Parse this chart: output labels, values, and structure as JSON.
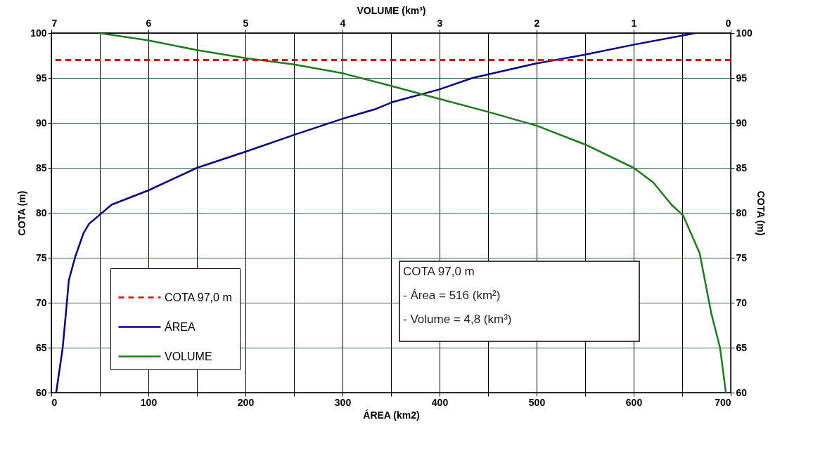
{
  "chart_data": {
    "type": "line",
    "xlabel": "ÁREA (km2)",
    "x2label": "VOLUME (km³)",
    "ylabel": "COTA (m)",
    "y2label": "COTA (m)",
    "xlim": [
      0,
      700
    ],
    "xticks": [
      0,
      {
        "value": 50,
        "label": null
      },
      100,
      {
        "value": 150,
        "label": null
      },
      200,
      {
        "value": 250,
        "label": null
      },
      300,
      {
        "value": 350,
        "label": null
      },
      400,
      {
        "value": 450,
        "label": null
      },
      500,
      {
        "value": 550,
        "label": null
      },
      600,
      {
        "value": 650,
        "label": null
      },
      700
    ],
    "x2lim": [
      7,
      0
    ],
    "x2ticks": [
      7,
      6,
      5,
      4,
      3,
      2,
      1,
      0
    ],
    "ylim": [
      60,
      100
    ],
    "yticks": [
      60,
      65,
      70,
      75,
      80,
      85,
      90,
      95,
      100
    ],
    "y2lim": [
      60,
      100
    ],
    "y2ticks": [
      60,
      65,
      70,
      75,
      80,
      85,
      90,
      95,
      100
    ],
    "grid": true,
    "legend": "bottom left",
    "line_style": "solid",
    "series": [
      {
        "name": "ÁREA",
        "color": "#000080",
        "x": [
          5,
          11.6,
          16,
          18,
          24.6,
          33,
          39,
          49,
          62,
          100,
          150,
          200,
          251,
          301,
          333,
          351,
          399,
          434,
          499,
          550,
          600,
          664
        ],
        "values": [
          60,
          64.9,
          70,
          72.5,
          75.1,
          77.7,
          78.8,
          79.7,
          80.9,
          82.5,
          85,
          86.8,
          88.7,
          90.5,
          91.5,
          92.3,
          93.7,
          95,
          96.6,
          97.6,
          98.7,
          100
        ]
      },
      {
        "name": "VOLUME",
        "color": "#1f7a1f",
        "axis": "x2",
        "x": [
          0.05,
          0.11,
          0.2,
          0.32,
          0.49,
          0.61,
          0.8,
          1.0,
          1.5,
          2.0,
          2.49,
          3.01,
          3.46,
          3.99,
          4.5,
          5.0,
          5.5,
          6.01,
          6.51
        ],
        "values": [
          60,
          65,
          68.8,
          75.5,
          79.7,
          80.9,
          83.4,
          85,
          87.6,
          89.7,
          91.2,
          92.7,
          94,
          95.5,
          96.5,
          97.2,
          98.1,
          99.2,
          100
        ]
      }
    ],
    "ref_lines": [
      {
        "axis": "y",
        "value": 97,
        "label": "COTA 97,0 m",
        "color": "#e00000",
        "line_style": "dashed"
      }
    ],
    "annotations": [
      "COTA 97,0 m",
      "- Área      = 516 (km²)",
      "- Volume = 4,8 (km³)"
    ]
  }
}
